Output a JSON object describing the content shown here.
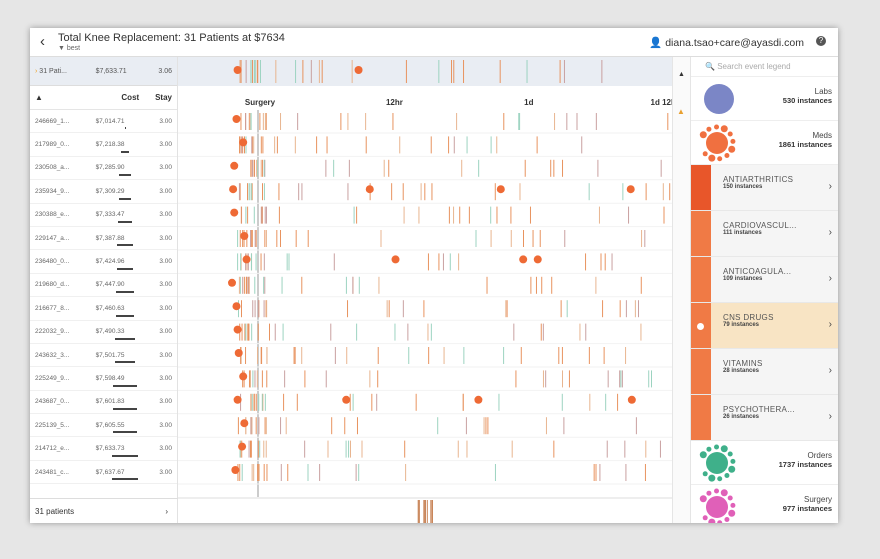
{
  "header": {
    "title": "Total Knee Replacement: 31 Patients at $7634",
    "filter": "best",
    "user": "diana.tsao+care@ayasdi.com"
  },
  "summary": {
    "label": "31 Pati...",
    "cost": "$7,633.71",
    "stay": "3.06",
    "dots_hours": [
      -2.0,
      8.8
    ]
  },
  "columns": {
    "cost": "Cost",
    "stay": "Stay"
  },
  "timeline_axis": [
    "Surgery",
    "12hr",
    "1d",
    "1d 12h"
  ],
  "patients": [
    {
      "id": "246669_1...",
      "cost": "$7,014.71",
      "stay": "3.00",
      "dots_hours": [
        -2.1
      ]
    },
    {
      "id": "217989_0...",
      "cost": "$7,218.38",
      "stay": "3.00",
      "dots_hours": [
        -1.5
      ]
    },
    {
      "id": "230508_a...",
      "cost": "$7,285.90",
      "stay": "3.00",
      "dots_hours": [
        -2.3
      ]
    },
    {
      "id": "235934_9...",
      "cost": "$7,309.29",
      "stay": "3.00",
      "dots_hours": [
        -2.4,
        9.8,
        21.5,
        33.1
      ]
    },
    {
      "id": "230388_e...",
      "cost": "$7,333.47",
      "stay": "3.00",
      "dots_hours": [
        -2.3
      ]
    },
    {
      "id": "229147_a...",
      "cost": "$7,387.88",
      "stay": "3.00",
      "dots_hours": [
        -1.4
      ]
    },
    {
      "id": "236480_0...",
      "cost": "$7,424.96",
      "stay": "3.00",
      "dots_hours": [
        -1.2,
        12.1,
        23.5,
        24.8
      ]
    },
    {
      "id": "219680_d...",
      "cost": "$7,447.90",
      "stay": "3.00",
      "dots_hours": [
        -2.5
      ]
    },
    {
      "id": "216677_8...",
      "cost": "$7,460.63",
      "stay": "3.00",
      "dots_hours": [
        -2.1
      ]
    },
    {
      "id": "222032_9...",
      "cost": "$7,490.33",
      "stay": "3.00",
      "dots_hours": [
        -2.0
      ]
    },
    {
      "id": "243632_3...",
      "cost": "$7,501.75",
      "stay": "3.00",
      "dots_hours": [
        -1.9
      ]
    },
    {
      "id": "225249_9...",
      "cost": "$7,598.49",
      "stay": "3.00",
      "dots_hours": [
        -1.5
      ]
    },
    {
      "id": "243687_0...",
      "cost": "$7,601.83",
      "stay": "3.00",
      "dots_hours": [
        -2.0,
        7.7,
        19.5,
        33.2
      ]
    },
    {
      "id": "225139_5...",
      "cost": "$7,605.55",
      "stay": "3.00",
      "dots_hours": [
        -1.4
      ]
    },
    {
      "id": "214712_e...",
      "cost": "$7,633.73",
      "stay": "3.00",
      "dots_hours": [
        -1.6
      ]
    },
    {
      "id": "243481_c...",
      "cost": "$7,637.67",
      "stay": "3.00",
      "dots_hours": [
        -2.2
      ]
    }
  ],
  "footer": {
    "label": "31 patients"
  },
  "legend": {
    "search_placeholder": "Search event legend",
    "labs": {
      "name": "Labs",
      "instances": "530 instances",
      "color": "#7b86c6"
    },
    "meds": {
      "name": "Meds",
      "instances": "1861 instances",
      "color": "#f07040"
    },
    "meds_sub": [
      {
        "name": "ANTIARTHRITICS",
        "instances": "150 instances"
      },
      {
        "name": "CARDIOVASCUL...",
        "instances": "111 instances"
      },
      {
        "name": "ANTICOAGULA...",
        "instances": "109 instances"
      },
      {
        "name": "CNS DRUGS",
        "instances": "79 instances",
        "selected": true
      },
      {
        "name": "VITAMINS",
        "instances": "28 instances"
      },
      {
        "name": "PSYCHOTHERA...",
        "instances": "26 instances"
      }
    ],
    "orders": {
      "name": "Orders",
      "instances": "1737 instances",
      "color": "#3fb08a"
    },
    "surgery": {
      "name": "Surgery",
      "instances": "977 instances",
      "color": "#e060b8"
    }
  }
}
